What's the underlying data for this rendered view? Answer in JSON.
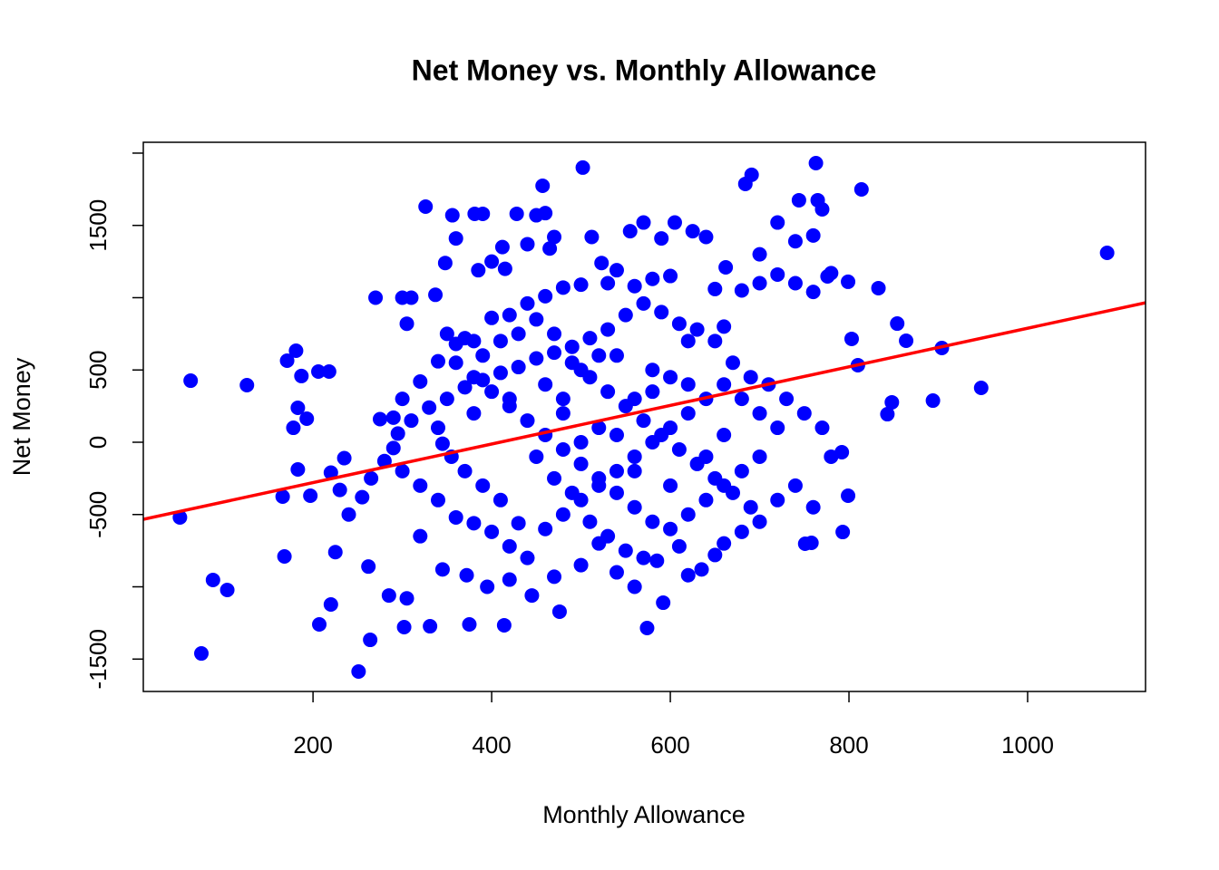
{
  "chart_data": {
    "type": "scatter",
    "title": "Net Money vs. Monthly Allowance",
    "x_label": "Monthly Allowance",
    "y_label": "Net Money",
    "color": "#0000ff",
    "xlim": [
      10,
      1132
    ],
    "ylim": [
      -1724,
      2075
    ],
    "xticks": [
      200,
      400,
      600,
      800,
      1000
    ],
    "yticks": [
      -1500,
      {
        "value": -1000,
        "label": null
      },
      -500,
      0,
      500,
      {
        "value": 1000,
        "label": null
      },
      1500,
      {
        "value": 2000,
        "label": null
      }
    ],
    "x": [
      502,
      763,
      691,
      684,
      814,
      457,
      744,
      765,
      770,
      326,
      356,
      381,
      390,
      428,
      450,
      460,
      1089,
      63,
      126,
      51,
      75,
      88,
      104,
      251,
      207,
      220,
      948,
      904,
      894,
      848,
      843,
      864,
      854,
      833,
      799,
      776,
      793,
      799,
      792,
      810,
      803,
      751,
      758,
      574,
      592,
      476,
      414,
      375,
      302,
      331,
      264,
      166,
      168,
      181,
      171,
      206,
      218,
      187,
      183,
      193,
      178,
      183,
      197,
      270,
      300,
      310,
      305,
      337,
      348,
      360,
      385,
      400,
      412,
      415,
      440,
      465,
      470,
      512,
      523,
      540,
      555,
      570,
      590,
      605,
      625,
      640,
      662,
      700,
      720,
      740,
      760,
      780,
      700,
      720,
      740,
      760,
      680,
      650,
      600,
      580,
      560,
      530,
      500,
      480,
      460,
      440,
      420,
      400,
      380,
      360,
      340,
      320,
      300,
      290,
      275,
      280,
      265,
      255,
      240,
      230,
      220,
      235,
      225,
      262,
      285,
      305,
      320,
      345,
      372,
      395,
      420,
      445,
      470,
      500,
      520,
      540,
      560,
      585,
      610,
      635,
      660,
      680,
      700,
      720,
      740,
      760,
      780,
      770,
      750,
      730,
      710,
      690,
      670,
      650,
      630,
      610,
      590,
      570,
      550,
      530,
      510,
      490,
      470,
      450,
      430,
      410,
      390,
      370,
      350,
      330,
      310,
      295,
      290,
      300,
      320,
      340,
      360,
      380,
      400,
      420,
      440,
      460,
      480,
      500,
      520,
      540,
      560,
      580,
      600,
      620,
      640,
      660,
      680,
      700,
      720,
      700,
      680,
      660,
      640,
      620,
      600,
      580,
      560,
      540,
      520,
      500,
      480,
      460,
      440,
      420,
      400,
      380,
      360,
      350,
      370,
      390,
      410,
      430,
      450,
      470,
      490,
      510,
      530,
      550,
      570,
      590,
      610,
      630,
      650,
      670,
      690,
      660,
      620,
      580,
      540,
      500,
      460,
      420,
      380,
      340,
      450,
      470,
      490,
      510,
      530,
      550,
      570,
      620,
      650,
      430,
      410,
      390,
      370,
      355,
      345,
      560,
      580,
      600,
      540,
      520,
      500,
      480,
      560,
      600,
      640,
      520,
      480,
      620,
      660
    ],
    "values": [
      1900,
      1931,
      1850,
      1787,
      1749,
      1774,
      1674,
      1674,
      1611,
      1630,
      1570,
      1580,
      1580,
      1580,
      1570,
      1585,
      1310,
      426,
      395,
      -520,
      -1461,
      -953,
      -1022,
      -1586,
      -1260,
      -1122,
      376,
      652,
      288,
      276,
      194,
      702,
      821,
      1066,
      1110,
      1147,
      -621,
      -370,
      -69,
      533,
      715,
      -702,
      -696,
      -1285,
      -1110,
      -1172,
      -1266,
      -1260,
      -1279,
      -1273,
      -1367,
      -376,
      -790,
      633,
      564,
      489,
      489,
      458,
      238,
      163,
      100,
      -188,
      -370,
      1000,
      1000,
      1000,
      820,
      1020,
      1240,
      1410,
      1190,
      1250,
      1350,
      1200,
      1370,
      1340,
      1420,
      1420,
      1240,
      1190,
      1460,
      1520,
      1410,
      1520,
      1460,
      1420,
      1210,
      1300,
      1520,
      1390,
      1430,
      1170,
      1100,
      1160,
      1100,
      1040,
      1050,
      1060,
      1150,
      1130,
      1080,
      1100,
      1090,
      1070,
      1010,
      960,
      880,
      860,
      700,
      680,
      560,
      420,
      300,
      170,
      160,
      -130,
      -250,
      -380,
      -500,
      -330,
      -210,
      -110,
      -760,
      -860,
      -1060,
      -1080,
      -650,
      -880,
      -920,
      -1000,
      -950,
      -1060,
      -930,
      -850,
      -700,
      -900,
      -1000,
      -820,
      -720,
      -880,
      -700,
      -620,
      -550,
      -400,
      -300,
      -450,
      -100,
      100,
      200,
      300,
      400,
      450,
      550,
      700,
      780,
      820,
      900,
      960,
      880,
      780,
      720,
      660,
      620,
      580,
      520,
      480,
      430,
      380,
      300,
      240,
      150,
      60,
      -40,
      -200,
      -300,
      -400,
      -520,
      -560,
      -620,
      -720,
      -800,
      -600,
      -500,
      -400,
      -300,
      -200,
      -100,
      0,
      100,
      200,
      300,
      400,
      300,
      200,
      100,
      -100,
      -200,
      -300,
      -400,
      -500,
      -600,
      -550,
      -450,
      -350,
      -250,
      -150,
      -50,
      50,
      150,
      250,
      350,
      450,
      550,
      750,
      720,
      600,
      700,
      750,
      850,
      750,
      550,
      450,
      350,
      250,
      150,
      50,
      -50,
      -150,
      -250,
      -350,
      -450,
      50,
      400,
      500,
      600,
      500,
      400,
      300,
      200,
      100,
      -100,
      -250,
      -350,
      -550,
      -650,
      -750,
      -800,
      -920,
      -780,
      -560,
      -400,
      -300,
      -200,
      -100,
      -10,
      300,
      350,
      450,
      50,
      100,
      0,
      200,
      -200,
      -300,
      -100,
      600,
      300,
      700,
      800
    ],
    "fit_line": {
      "color": "#ff0000",
      "x": [
        10,
        1132
      ],
      "y": [
        -533,
        965
      ]
    }
  }
}
